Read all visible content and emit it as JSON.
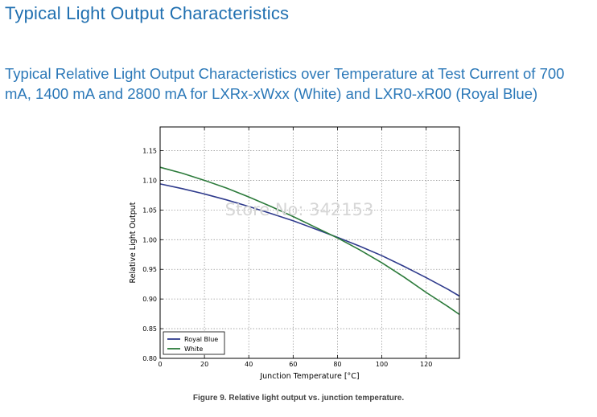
{
  "header": {
    "title": "Typical Light Output Characteristics",
    "subtitle": "Typical Relative Light Output Characteristics over Temperature at Test Current of 700 mA, 1400 mA and 2800 mA for LXRx-xWxx (White) and LXR0-xR00 (Royal Blue)"
  },
  "watermark": "Store No: 342153",
  "caption": "Figure 9.  Relative light output vs. junction temperature.",
  "colors": {
    "royal_blue": "#2e3a8c",
    "white": "#2b7a3a"
  },
  "chart_data": {
    "type": "line",
    "title": "",
    "xlabel": "Junction Temperature [°C]",
    "ylabel": "Relative Light Output",
    "xlim": [
      0,
      135
    ],
    "ylim": [
      0.8,
      1.19
    ],
    "xticks": [
      0,
      20,
      40,
      60,
      80,
      100,
      120
    ],
    "yticks": [
      0.8,
      0.85,
      0.9,
      0.95,
      1.0,
      1.05,
      1.1,
      1.15
    ],
    "grid": true,
    "legend_position": "bottom-left",
    "series": [
      {
        "name": "Royal Blue",
        "color": "#2e3a8c",
        "x": [
          0,
          10,
          20,
          30,
          40,
          50,
          60,
          70,
          80,
          90,
          100,
          110,
          120,
          130,
          135
        ],
        "y": [
          1.094,
          1.086,
          1.077,
          1.067,
          1.056,
          1.044,
          1.032,
          1.018,
          1.004,
          0.989,
          0.973,
          0.955,
          0.936,
          0.916,
          0.905
        ]
      },
      {
        "name": "White",
        "color": "#2b7a3a",
        "x": [
          0,
          10,
          20,
          30,
          40,
          50,
          60,
          70,
          80,
          90,
          100,
          110,
          120,
          130,
          135
        ],
        "y": [
          1.122,
          1.112,
          1.1,
          1.087,
          1.072,
          1.056,
          1.039,
          1.021,
          1.003,
          0.983,
          0.961,
          0.937,
          0.911,
          0.887,
          0.874
        ]
      }
    ]
  }
}
